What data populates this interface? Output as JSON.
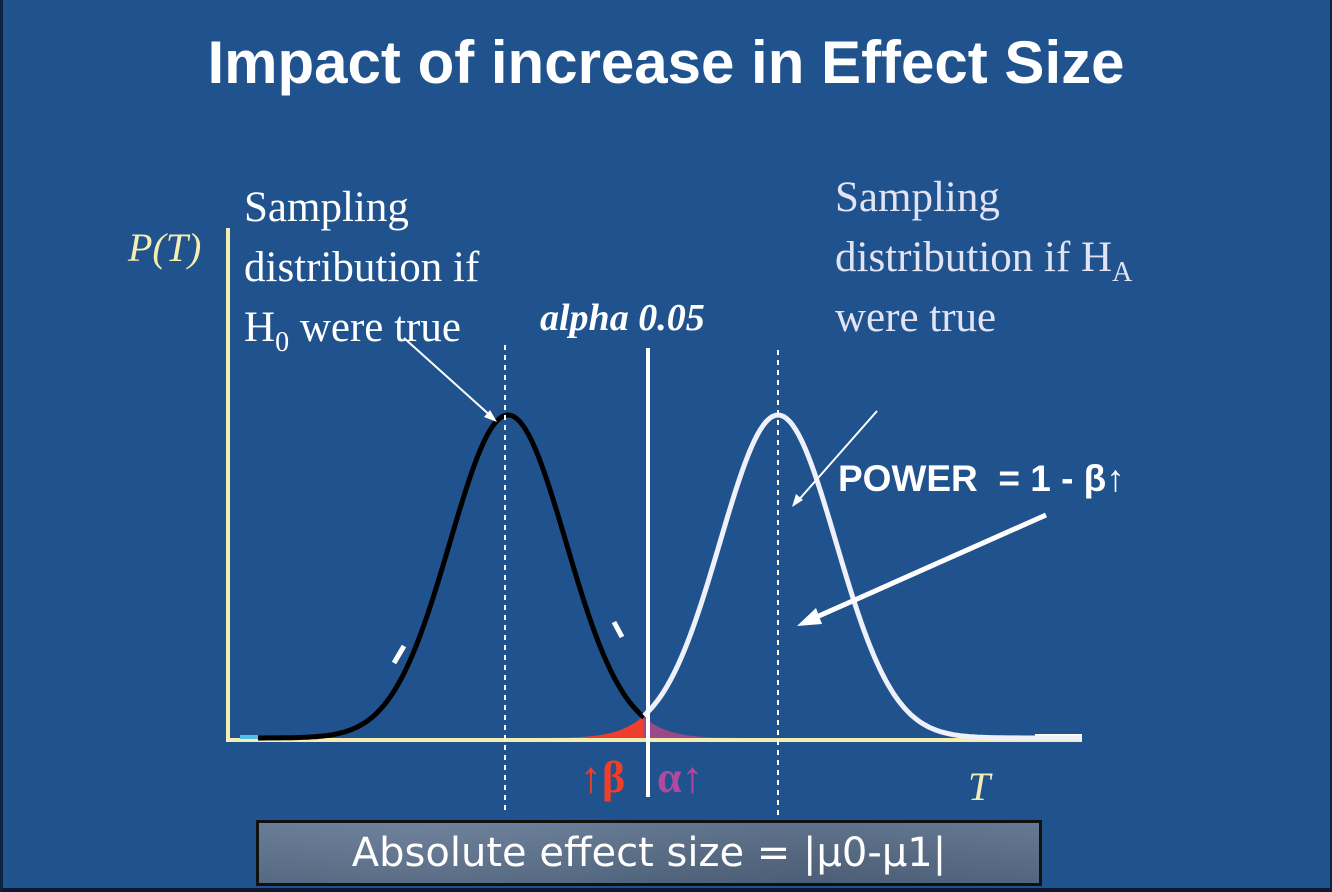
{
  "slide": {
    "title": "Impact of increase in Effect Size",
    "null_label": {
      "line1": "Sampling",
      "line2": "distribution if",
      "line3_symbol": "H",
      "line3_subscript": "0",
      "line3_rest": " were true"
    },
    "alt_label": {
      "line1": "Sampling",
      "line2_text": "distribution if H",
      "line2_subscript": "A",
      "line3": "were true"
    },
    "y_axis_label": "P(T)",
    "x_axis_label": "T",
    "alpha_label": "alpha 0.05",
    "power_label": "POWER  = 1 - β↑",
    "beta_label": "↑β",
    "alpha_symbol_label": "α↑",
    "effect_size_label": "Absolute effect size = |μ0-μ1|",
    "colors": {
      "background": "#20528e",
      "null_curve": "#000000",
      "alt_curve": "#eef0fa",
      "axes": "#f4eeb2",
      "beta_fill": "#ee3f2c",
      "alpha_fill": "#9a4a88",
      "effect_box": "#5a6f8c"
    }
  }
}
